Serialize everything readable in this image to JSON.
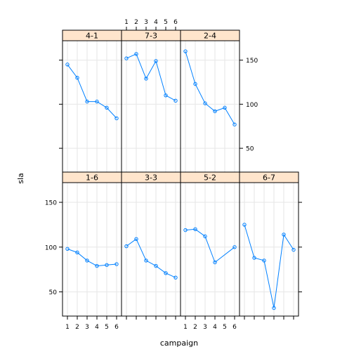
{
  "chart_data": {
    "type": "line",
    "layout": "lattice panels, 4 columns x 2 rows, one panel per group",
    "xlabel": "campaign",
    "ylabel": "sla",
    "xlim": [
      0.5,
      6.5
    ],
    "ylim": [
      23,
      172
    ],
    "x_ticks": [
      "1",
      "2",
      "3",
      "4",
      "5",
      "6"
    ],
    "y_ticks": [
      50,
      100,
      150
    ],
    "x": [
      1,
      2,
      3,
      4,
      5,
      6
    ],
    "series": [
      {
        "name": "4-1",
        "values": [
          145,
          130,
          103,
          103,
          96,
          84
        ]
      },
      {
        "name": "7-3",
        "values": [
          152,
          157,
          129,
          149,
          110,
          104
        ]
      },
      {
        "name": "2-4",
        "values": [
          160,
          123,
          101,
          92,
          96,
          77
        ]
      },
      {
        "name": "1-6",
        "values": [
          98,
          94,
          85,
          79,
          80,
          81
        ]
      },
      {
        "name": "3-3",
        "values": [
          101,
          109,
          85,
          79,
          71,
          66
        ]
      },
      {
        "name": "5-2",
        "values": [
          119,
          120,
          112,
          83,
          null,
          100
        ]
      },
      {
        "name": "6-7",
        "values": [
          125,
          88,
          85,
          32,
          114,
          97
        ]
      }
    ]
  },
  "colors": {
    "line": "#0080ff",
    "strip_fill": "#ffe5cc",
    "grid": "#e6e6e6",
    "border": "#000000"
  }
}
